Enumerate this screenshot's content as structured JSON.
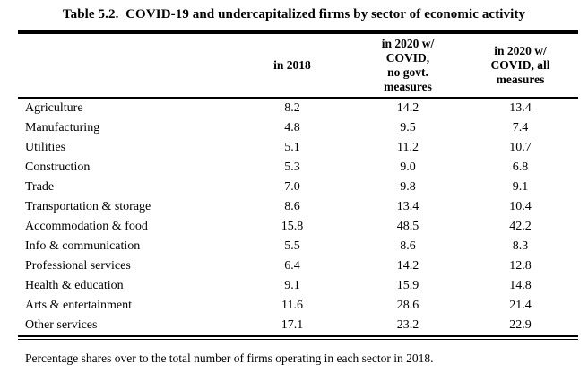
{
  "title": "Table 5.2.  COVID-19 and undercapitalized firms by sector of economic activity",
  "table": {
    "columns": [
      {
        "label": ""
      },
      {
        "label": "in 2018",
        "lines": [
          "in 2018"
        ]
      },
      {
        "label": "in 2020 w/ COVID, no govt. measures",
        "lines": [
          "in 2020 w/",
          "COVID,",
          "no govt.",
          "measures"
        ]
      },
      {
        "label": "in 2020 w/ COVID, all measures",
        "lines": [
          "in 2020 w/",
          "COVID, all",
          "measures"
        ]
      }
    ],
    "rows": [
      {
        "sector": "Agriculture",
        "values": [
          "8.2",
          "14.2",
          "13.4"
        ]
      },
      {
        "sector": "Manufacturing",
        "values": [
          "4.8",
          "9.5",
          "7.4"
        ]
      },
      {
        "sector": "Utilities",
        "values": [
          "5.1",
          "11.2",
          "10.7"
        ]
      },
      {
        "sector": "Construction",
        "values": [
          "5.3",
          "9.0",
          "6.8"
        ]
      },
      {
        "sector": "Trade",
        "values": [
          "7.0",
          "9.8",
          "9.1"
        ]
      },
      {
        "sector": "Transportation & storage",
        "values": [
          "8.6",
          "13.4",
          "10.4"
        ]
      },
      {
        "sector": "Accommodation & food",
        "values": [
          "15.8",
          "48.5",
          "42.2"
        ]
      },
      {
        "sector": "Info & communication",
        "values": [
          "5.5",
          "8.6",
          "8.3"
        ]
      },
      {
        "sector": "Professional services",
        "values": [
          "6.4",
          "14.2",
          "12.8"
        ]
      },
      {
        "sector": "Health & education",
        "values": [
          "9.1",
          "15.9",
          "14.8"
        ]
      },
      {
        "sector": "Arts & entertainment",
        "values": [
          "11.6",
          "28.6",
          "21.4"
        ]
      },
      {
        "sector": "Other services",
        "values": [
          "17.1",
          "23.2",
          "22.9"
        ]
      }
    ]
  },
  "footnote": "Percentage shares over to the total number of firms operating in each sector in 2018.",
  "colors": {
    "text": "#000000",
    "background": "#ffffff",
    "rule": "#000000"
  }
}
